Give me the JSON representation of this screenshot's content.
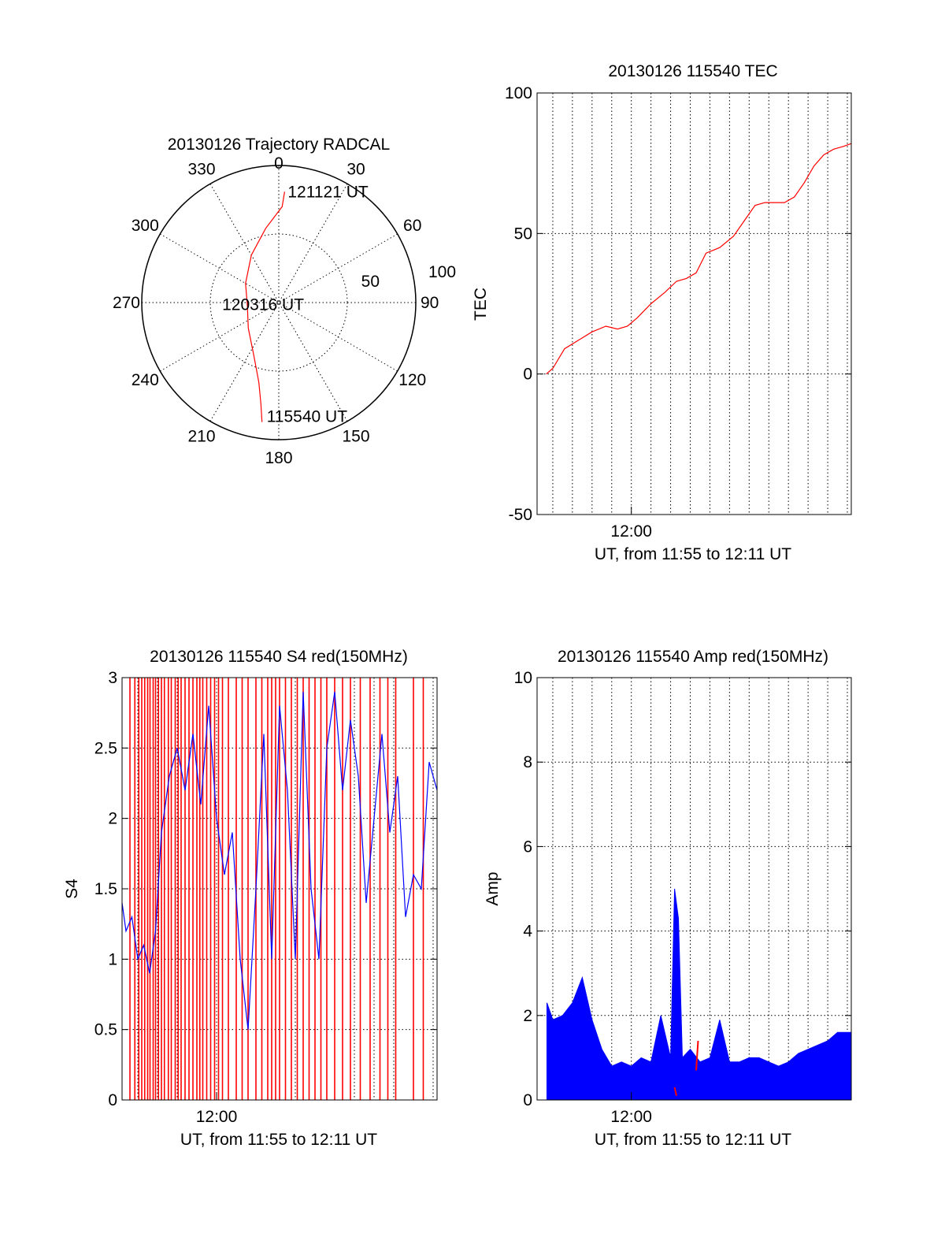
{
  "colors": {
    "red": "#ff0000",
    "blue": "#0000ff",
    "axis": "#000000",
    "grid": "#000000",
    "background": "#ffffff"
  },
  "chart_data": [
    {
      "id": "trajectory",
      "type": "polar",
      "title": "20130126 Trajectory RADCAL",
      "angle_labels": [
        "0",
        "30",
        "60",
        "90",
        "120",
        "150",
        "180",
        "210",
        "240",
        "270",
        "300",
        "330"
      ],
      "angle_values": [
        0,
        30,
        60,
        90,
        120,
        150,
        180,
        210,
        240,
        270,
        300,
        330
      ],
      "radial_ticks": [
        50,
        100
      ],
      "radial_tick_labels": [
        "50",
        "100"
      ],
      "radial_max": 100,
      "grid": true,
      "track_color": "red",
      "track": [
        {
          "az": 3,
          "zen": 81
        },
        {
          "az": 2,
          "zen": 70
        },
        {
          "az": 350,
          "zen": 55
        },
        {
          "az": 330,
          "zen": 40
        },
        {
          "az": 300,
          "zen": 28
        },
        {
          "az": 265,
          "zen": 23
        },
        {
          "az": 230,
          "zen": 29
        },
        {
          "az": 205,
          "zen": 43
        },
        {
          "az": 194,
          "zen": 60
        },
        {
          "az": 190,
          "zen": 75
        },
        {
          "az": 188,
          "zen": 88
        }
      ],
      "annotations": [
        {
          "text": "121121 UT",
          "az": 3,
          "zen": 81
        },
        {
          "text": "120316 UT",
          "az": 265,
          "zen": 23
        },
        {
          "text": "115540 UT",
          "az": 188,
          "zen": 88
        }
      ]
    },
    {
      "id": "tec",
      "type": "line",
      "title": "20130126 115540 TEC",
      "xlabel": "UT, from 11:55 to 12:11 UT",
      "ylabel": "TEC",
      "xlim_minutes": [
        11.2,
        27.2
      ],
      "ylim": [
        -50,
        100
      ],
      "yticks": [
        -50,
        0,
        50,
        100
      ],
      "ytick_labels": [
        "-50",
        "0",
        "50",
        "100"
      ],
      "xticks": [
        {
          "value": 16.0,
          "label": "12:00"
        }
      ],
      "grid": true,
      "series": [
        {
          "color": "red",
          "x": [
            11.67,
            12.0,
            12.6,
            13.3,
            14.0,
            14.7,
            15.3,
            15.8,
            16.3,
            17.0,
            17.7,
            18.3,
            18.8,
            19.3,
            19.8,
            20.5,
            21.2,
            21.8,
            22.3,
            22.8,
            23.3,
            23.8,
            24.3,
            24.8,
            25.3,
            25.8,
            26.3,
            26.8,
            27.2
          ],
          "y": [
            0,
            2,
            9,
            12,
            15,
            17,
            16,
            17,
            20,
            25,
            29,
            33,
            34,
            36,
            43,
            45,
            49,
            55,
            60,
            61,
            61,
            61,
            63,
            68,
            74,
            78,
            80,
            81,
            82
          ]
        }
      ]
    },
    {
      "id": "s4",
      "type": "line",
      "title": "20130126 115540 S4 red(150MHz)",
      "xlabel": "UT, from 11:55 to 12:11 UT",
      "ylabel": "S4",
      "xlim_minutes": [
        11.2,
        27.2
      ],
      "ylim": [
        0,
        3
      ],
      "yticks": [
        0,
        0.5,
        1,
        1.5,
        2,
        2.5,
        3
      ],
      "ytick_labels": [
        "0",
        "0.5",
        "1",
        "1.5",
        "2",
        "2.5",
        "3"
      ],
      "xticks": [
        {
          "value": 16.0,
          "label": "12:00"
        }
      ],
      "grid": true,
      "series": [
        {
          "color": "blue",
          "x": [
            11.2,
            11.4,
            11.7,
            12.0,
            12.3,
            12.6,
            12.9,
            13.2,
            13.6,
            14.0,
            14.4,
            14.8,
            15.2,
            15.6,
            16.0,
            16.4,
            16.8,
            17.2,
            17.6,
            18.0,
            18.4,
            18.8,
            19.2,
            19.6,
            20.0,
            20.4,
            20.8,
            21.2,
            21.6,
            22.0,
            22.4,
            22.8,
            23.2,
            23.6,
            24.0,
            24.4,
            24.8,
            25.2,
            25.6,
            26.0,
            26.4,
            26.8,
            27.2
          ],
          "y": [
            1.4,
            1.2,
            1.3,
            1.0,
            1.1,
            0.9,
            1.2,
            1.9,
            2.3,
            2.5,
            2.2,
            2.6,
            2.1,
            2.8,
            2.0,
            1.6,
            1.9,
            1.0,
            0.5,
            1.5,
            2.6,
            1.0,
            2.8,
            2.2,
            1.0,
            2.9,
            1.5,
            1.0,
            2.5,
            2.9,
            2.2,
            2.7,
            2.3,
            1.4,
            2.0,
            2.6,
            1.9,
            2.3,
            1.3,
            1.6,
            1.5,
            2.4,
            2.2
          ]
        }
      ],
      "vertical_red_lines_x": [
        11.6,
        11.85,
        12.05,
        12.2,
        12.35,
        12.5,
        12.62,
        12.78,
        12.9,
        13.05,
        13.2,
        13.35,
        13.55,
        13.7,
        13.9,
        14.05,
        14.2,
        14.4,
        14.6,
        14.8,
        15.0,
        15.15,
        15.3,
        15.5,
        15.7,
        15.9,
        16.1,
        16.3,
        16.6,
        17.0,
        17.3,
        17.6,
        18.0,
        18.3,
        18.6,
        18.8,
        19.0,
        19.2,
        19.5,
        19.8,
        20.1,
        20.4,
        20.7,
        21.0,
        21.3,
        21.6,
        22.0,
        22.4,
        22.8,
        23.3,
        23.8,
        24.3,
        24.7,
        25.1,
        26.0,
        26.5
      ]
    },
    {
      "id": "amp",
      "type": "line",
      "title": "20130126 115540 Amp red(150MHz)",
      "xlabel": "UT, from 11:55 to 12:11 UT",
      "ylabel": "Amp",
      "xlim_minutes": [
        11.2,
        27.2
      ],
      "ylim": [
        0,
        10
      ],
      "yticks": [
        0,
        2,
        4,
        6,
        8,
        10
      ],
      "ytick_labels": [
        "0",
        "2",
        "4",
        "6",
        "8",
        "10"
      ],
      "xticks": [
        {
          "value": 16.0,
          "label": "12:00"
        }
      ],
      "grid": true,
      "series": [
        {
          "color": "blue",
          "x": [
            11.7,
            12.0,
            12.5,
            13.0,
            13.5,
            14.0,
            14.5,
            15.0,
            15.5,
            16.0,
            16.5,
            17.0,
            17.5,
            18.0,
            18.2,
            18.4,
            18.6,
            19.0,
            19.5,
            20.0,
            20.5,
            21.0,
            21.5,
            22.0,
            22.5,
            23.0,
            23.5,
            24.0,
            24.5,
            25.0,
            25.5,
            26.0,
            26.5,
            27.2
          ],
          "y": [
            2.3,
            1.9,
            2.0,
            2.3,
            2.9,
            1.9,
            1.2,
            0.8,
            0.9,
            0.8,
            1.0,
            0.9,
            2.0,
            1.0,
            5.0,
            4.3,
            1.0,
            1.2,
            0.9,
            1.0,
            1.9,
            0.9,
            0.9,
            1.0,
            1.0,
            0.9,
            0.8,
            0.9,
            1.1,
            1.2,
            1.3,
            1.4,
            1.6,
            1.6
          ]
        },
        {
          "color": "red",
          "x": [
            18.2,
            18.3,
            19.3,
            19.4
          ],
          "y": [
            0.3,
            0.1,
            0.7,
            1.4
          ]
        }
      ]
    }
  ]
}
